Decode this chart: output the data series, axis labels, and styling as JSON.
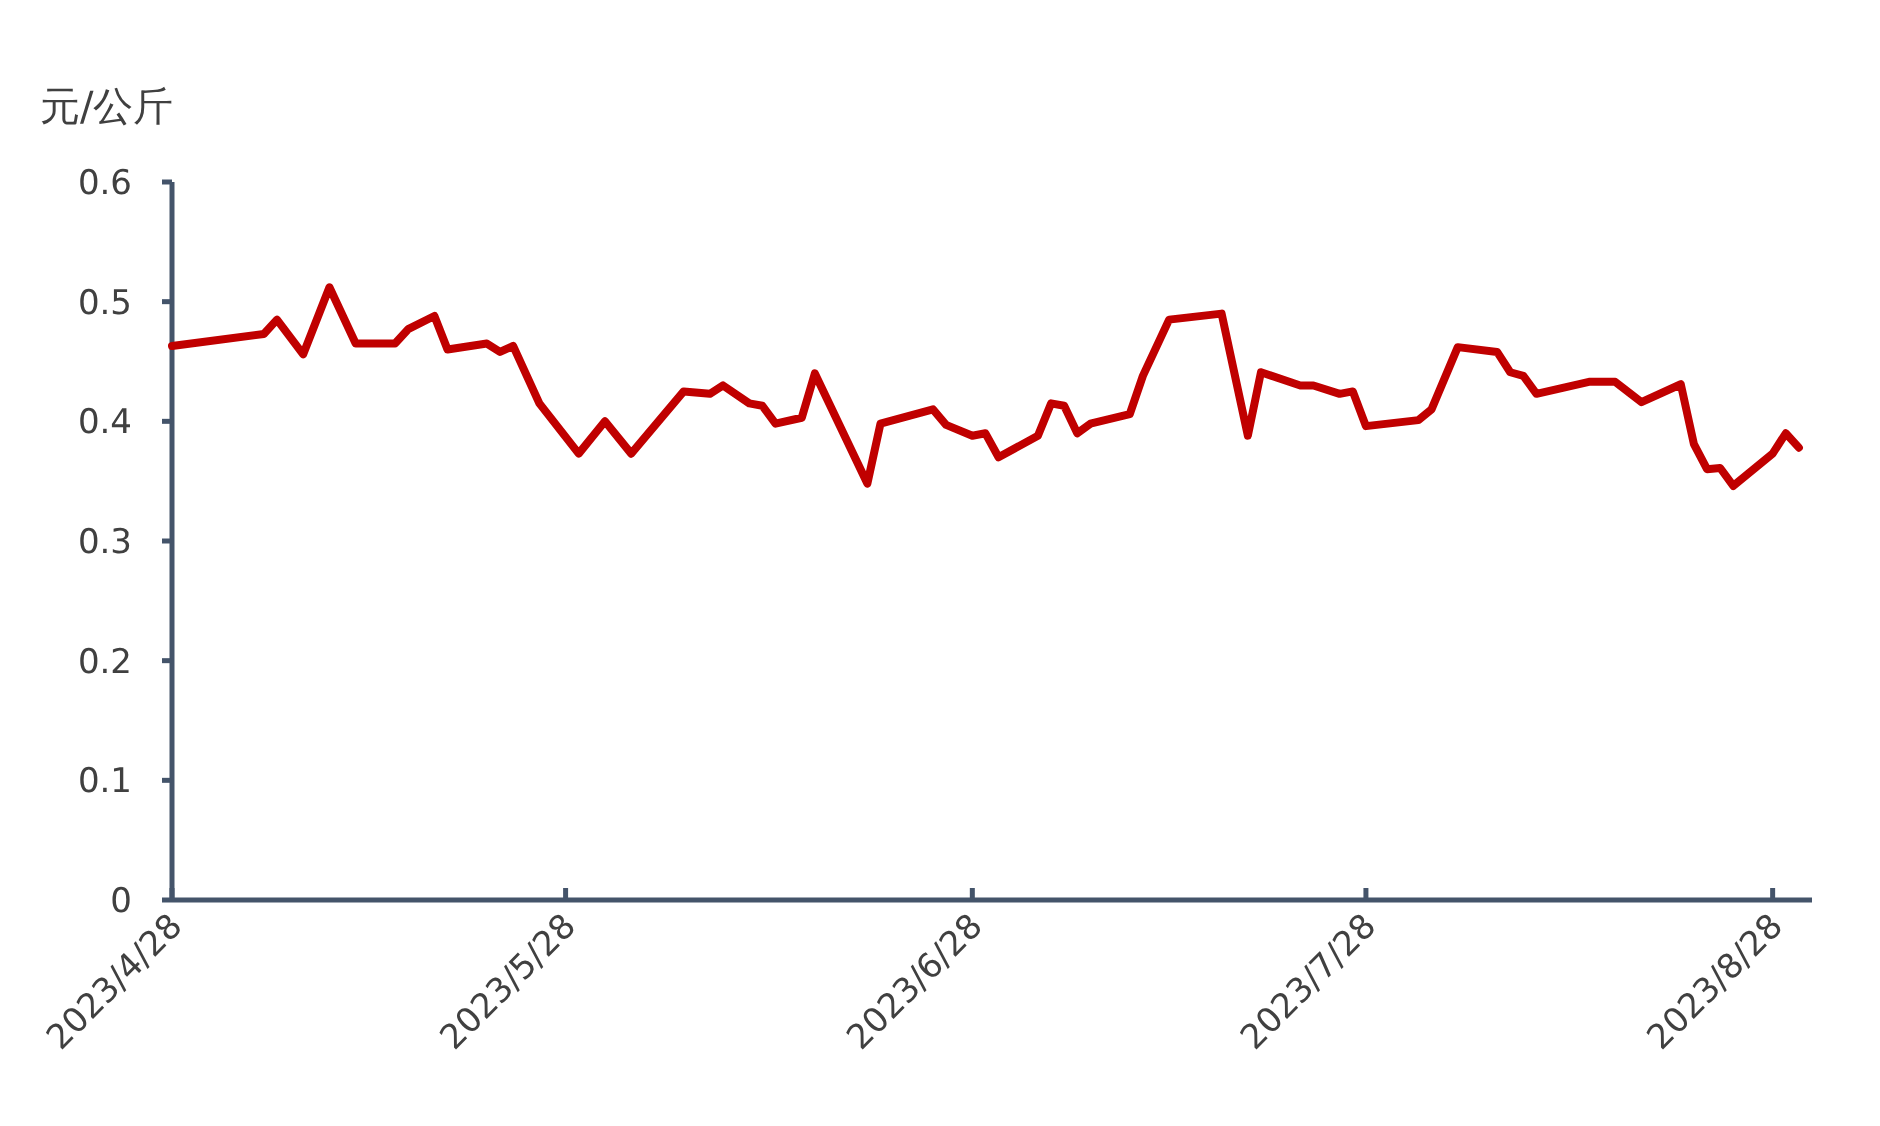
{
  "chart_data": {
    "type": "line",
    "ylabel": "元/公斤",
    "x": [
      "2023-04-28",
      "2023-05-05",
      "2023-05-06",
      "2023-05-08",
      "2023-05-10",
      "2023-05-12",
      "2023-05-15",
      "2023-05-16",
      "2023-05-18",
      "2023-05-19",
      "2023-05-22",
      "2023-05-23",
      "2023-05-24",
      "2023-05-26",
      "2023-05-29",
      "2023-05-31",
      "2023-06-02",
      "2023-06-06",
      "2023-06-08",
      "2023-06-09",
      "2023-06-11",
      "2023-06-12",
      "2023-06-13",
      "2023-06-15",
      "2023-06-16",
      "2023-06-20",
      "2023-06-21",
      "2023-06-25",
      "2023-06-26",
      "2023-06-28",
      "2023-06-29",
      "2023-06-30",
      "2023-07-03",
      "2023-07-04",
      "2023-07-05",
      "2023-07-06",
      "2023-07-07",
      "2023-07-10",
      "2023-07-11",
      "2023-07-13",
      "2023-07-17",
      "2023-07-19",
      "2023-07-20",
      "2023-07-23",
      "2023-07-24",
      "2023-07-26",
      "2023-07-27",
      "2023-07-28",
      "2023-08-01",
      "2023-08-02",
      "2023-08-04",
      "2023-08-07",
      "2023-08-08",
      "2023-08-09",
      "2023-08-10",
      "2023-08-14",
      "2023-08-16",
      "2023-08-18",
      "2023-08-21",
      "2023-08-22",
      "2023-08-23",
      "2023-08-24",
      "2023-08-25",
      "2023-08-28",
      "2023-08-29",
      "2023-08-30"
    ],
    "series": [
      {
        "color": "#c00000",
        "values": [
          0.463,
          0.473,
          0.485,
          0.456,
          0.512,
          0.465,
          0.465,
          0.477,
          0.488,
          0.46,
          0.465,
          0.458,
          0.463,
          0.415,
          0.373,
          0.4,
          0.373,
          0.425,
          0.423,
          0.43,
          0.415,
          0.413,
          0.398,
          0.403,
          0.44,
          0.348,
          0.398,
          0.41,
          0.397,
          0.388,
          0.39,
          0.37,
          0.388,
          0.415,
          0.413,
          0.39,
          0.398,
          0.406,
          0.438,
          0.485,
          0.49,
          0.388,
          0.441,
          0.43,
          0.43,
          0.423,
          0.425,
          0.396,
          0.401,
          0.41,
          0.462,
          0.458,
          0.441,
          0.438,
          0.423,
          0.433,
          0.433,
          0.416,
          0.431,
          0.381,
          0.36,
          0.361,
          0.346,
          0.373,
          0.39,
          0.378
        ]
      }
    ],
    "xlim": [
      "2023-04-28",
      "2023-08-31"
    ],
    "xticks": [
      {
        "value": "2023-04-28",
        "label": "2023/4/28"
      },
      {
        "value": "2023-05-28",
        "label": "2023/5/28"
      },
      {
        "value": "2023-06-28",
        "label": "2023/6/28"
      },
      {
        "value": "2023-07-28",
        "label": "2023/7/28"
      },
      {
        "value": "2023-08-28",
        "label": "2023/8/28"
      }
    ],
    "ylim": [
      0,
      0.6
    ],
    "yticks": [
      0,
      0.1,
      0.2,
      0.3,
      0.4,
      0.5,
      0.6
    ],
    "grid": false,
    "marker": "none",
    "line_style": "solid"
  }
}
